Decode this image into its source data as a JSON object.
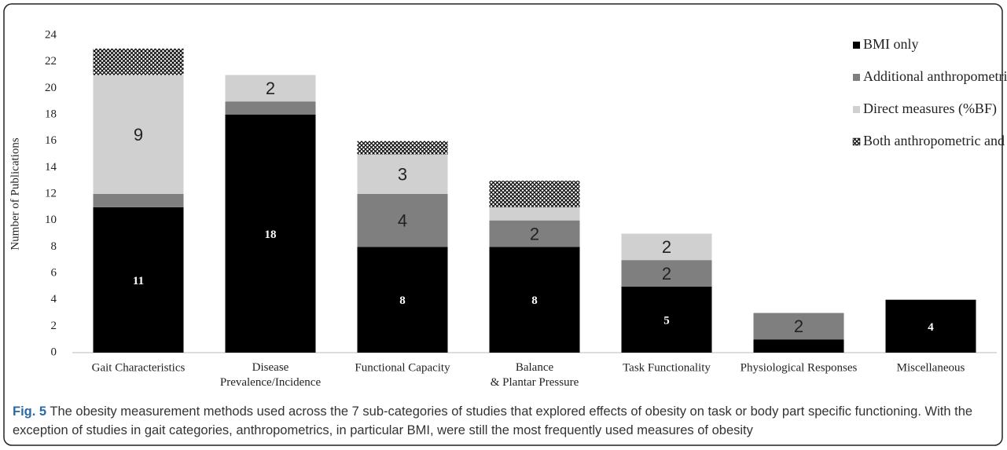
{
  "chart_data": {
    "type": "stacked_bar",
    "y_label": "Number of Publications",
    "categories": [
      "Gait Characteristics",
      "Disease Prevalence/Incidence",
      "Functional Capacity",
      "Balance & Plantar Pressure",
      "Task Functionality",
      "Physiological Responses",
      "Miscellaneous"
    ],
    "series": [
      {
        "name": "BMI only",
        "color": "#000000",
        "values": [
          11,
          18,
          8,
          8,
          5,
          1,
          4
        ],
        "value_labels": [
          "11",
          "18",
          "8",
          "8",
          "5",
          null,
          "4"
        ]
      },
      {
        "name": "Additional anthropometric Measures (WC, WHR)",
        "color": "#7f7f7f",
        "values": [
          1,
          1,
          4,
          2,
          2,
          2,
          0
        ],
        "value_labels": [
          null,
          null,
          "4",
          "2",
          "2",
          "2",
          null
        ]
      },
      {
        "name": "Direct measures (%BF)",
        "color": "#d0d0d0",
        "values": [
          9,
          2,
          3,
          1,
          2,
          0,
          0
        ],
        "value_labels": [
          "9",
          "2",
          "3",
          null,
          "2",
          null,
          null
        ]
      },
      {
        "name": "Both anthropometric and direct measures",
        "color": "#000000",
        "pattern": "crosshatch",
        "values": [
          2,
          0,
          1,
          2,
          0,
          0,
          0
        ]
      }
    ],
    "ylim": [
      0,
      24
    ],
    "yticks": [
      0,
      2,
      4,
      6,
      8,
      10,
      12,
      14,
      16,
      18,
      20,
      22,
      24
    ],
    "legend": "top-right"
  },
  "caption": {
    "label": "Fig. 5",
    "text": "The obesity measurement methods used across the 7 sub-categories of studies that explored effects of obesity on task or body part specific functioning. With the exception of studies in gait categories, anthropometrics, in particular BMI, were still the most frequently used measures of obesity"
  }
}
